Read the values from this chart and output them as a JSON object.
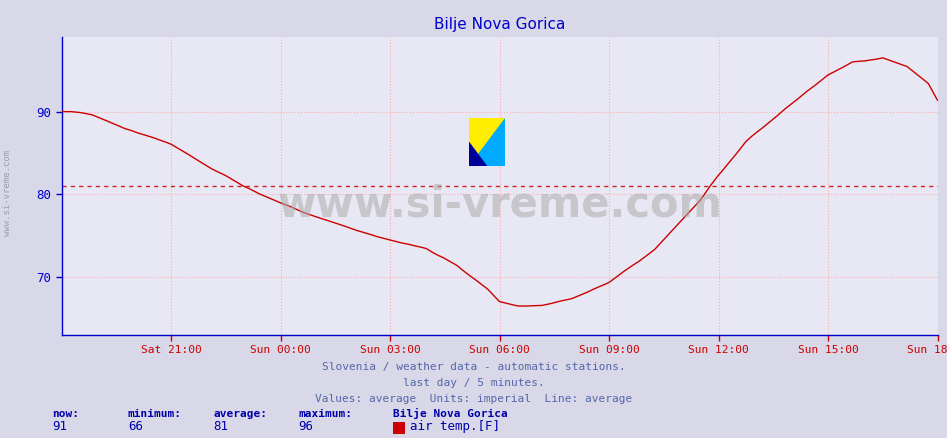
{
  "title": "Bilje Nova Gorica",
  "title_color": "#0000cc",
  "bg_color": "#d8d8e8",
  "plot_bg_color": "#e8e8f4",
  "line_color": "#cc0000",
  "avg_line_color": "#cc0000",
  "average_value": 81,
  "yticks": [
    70,
    80,
    90
  ],
  "ymin": 63,
  "ymax": 99,
  "grid_color": "#ffaaaa",
  "watermark_text": "www.si-vreme.com",
  "watermark_color": "#aaaaaa",
  "watermark_alpha": 0.55,
  "left_label": "www.si-vreme.com",
  "left_label_color": "#888899",
  "footer_line1": "Slovenia / weather data - automatic stations.",
  "footer_line2": "last day / 5 minutes.",
  "footer_line3": "Values: average  Units: imperial  Line: average",
  "footer_color": "#5566aa",
  "stats_labels": [
    "now:",
    "minimum:",
    "average:",
    "maximum:",
    "Bilje Nova Gorica"
  ],
  "stats_values": [
    "91",
    "66",
    "81",
    "96"
  ],
  "stats_legend": "air temp.[F]",
  "stats_label_color": "#0000aa",
  "stats_value_color": "#0000aa",
  "x_tick_labels": [
    "Sat 21:00",
    "Sun 00:00",
    "Sun 03:00",
    "Sun 06:00",
    "Sun 09:00",
    "Sun 12:00",
    "Sun 15:00",
    "Sun 18:00"
  ],
  "x_tick_positions": [
    36,
    72,
    108,
    144,
    180,
    216,
    252,
    288
  ],
  "total_points": 289,
  "key_x": [
    0,
    3,
    10,
    20,
    36,
    50,
    60,
    72,
    85,
    100,
    108,
    120,
    130,
    140,
    144,
    150,
    158,
    168,
    180,
    195,
    210,
    216,
    225,
    235,
    245,
    252,
    260,
    270,
    278,
    285,
    288
  ],
  "key_y": [
    90,
    90,
    89.5,
    88,
    86,
    83,
    81,
    79,
    77,
    75,
    74,
    73,
    71,
    68,
    66.5,
    66,
    66,
    67,
    69,
    73,
    79,
    82,
    86,
    89,
    92,
    94,
    95.5,
    96,
    95,
    93,
    91
  ]
}
